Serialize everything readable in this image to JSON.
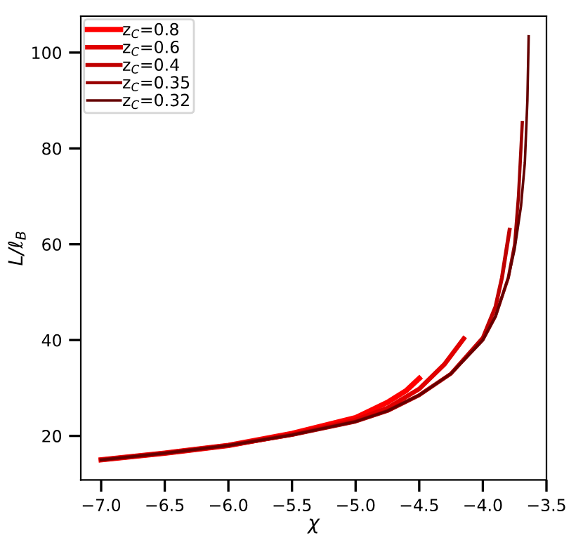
{
  "chart_data": {
    "type": "line",
    "xlabel": "χ",
    "ylabel": "L/ℓ$_{B}$",
    "xlim": [
      -7.16,
      -3.5
    ],
    "ylim": [
      10.8,
      107.6
    ],
    "xticks": [
      {
        "value": -7.0,
        "label": "−7.0"
      },
      {
        "value": -6.5,
        "label": "−6.5"
      },
      {
        "value": -6.0,
        "label": "−6.0"
      },
      {
        "value": -5.5,
        "label": "−5.5"
      },
      {
        "value": -5.0,
        "label": "−5.0"
      },
      {
        "value": -4.5,
        "label": "−4.5"
      },
      {
        "value": -4.0,
        "label": "−4.0"
      },
      {
        "value": -3.5,
        "label": "−3.5"
      }
    ],
    "yticks": [
      20,
      40,
      60,
      80,
      100
    ],
    "grid": false,
    "legend": "top left",
    "marker": "none",
    "line_style": "solid",
    "series": [
      {
        "name": "z$_{C}$=0.8",
        "color": "#ff0000",
        "x": [
          -7,
          -6.5,
          -6,
          -5.5,
          -5,
          -4.75,
          -4.6,
          -4.5
        ],
        "values": [
          15,
          16.4,
          18,
          20.5,
          23.8,
          27,
          29.5,
          32
        ]
      },
      {
        "name": "z$_{C}$=0.6",
        "color": "#e00000",
        "x": [
          -7,
          -6.5,
          -6,
          -5.5,
          -5,
          -4.75,
          -4.5,
          -4.3,
          -4.15
        ],
        "values": [
          15,
          16.4,
          18,
          20.3,
          23.3,
          25.8,
          29.8,
          35,
          40.3
        ]
      },
      {
        "name": "z$_{C}$=0.4",
        "color": "#c00000",
        "x": [
          -7,
          -6.5,
          -6,
          -5.5,
          -5,
          -4.75,
          -4.5,
          -4.25,
          -4,
          -3.9,
          -3.85,
          -3.79
        ],
        "values": [
          15,
          16.4,
          18,
          20.2,
          23,
          25.2,
          28.5,
          33,
          40.5,
          47,
          53,
          63
        ]
      },
      {
        "name": "z$_{C}$=0.35",
        "color": "#9a0000",
        "x": [
          -7,
          -6.5,
          -6,
          -5.5,
          -5,
          -4.75,
          -4.5,
          -4.25,
          -4,
          -3.9,
          -3.8,
          -3.75,
          -3.72,
          -3.69
        ],
        "values": [
          15,
          16.4,
          18,
          20.2,
          23,
          25.2,
          28.5,
          33,
          40,
          45,
          53,
          60,
          70,
          85.4
        ]
      },
      {
        "name": "z$_{C}$=0.32",
        "color": "#650000",
        "x": [
          -7,
          -6.5,
          -6,
          -5.5,
          -5,
          -4.75,
          -4.5,
          -4.25,
          -4,
          -3.9,
          -3.8,
          -3.75,
          -3.7,
          -3.67,
          -3.65,
          -3.64
        ],
        "values": [
          15,
          16.4,
          18,
          20.2,
          23,
          25.2,
          28.5,
          33,
          40,
          45,
          53,
          59,
          68,
          77,
          90,
          103.4
        ]
      }
    ]
  }
}
